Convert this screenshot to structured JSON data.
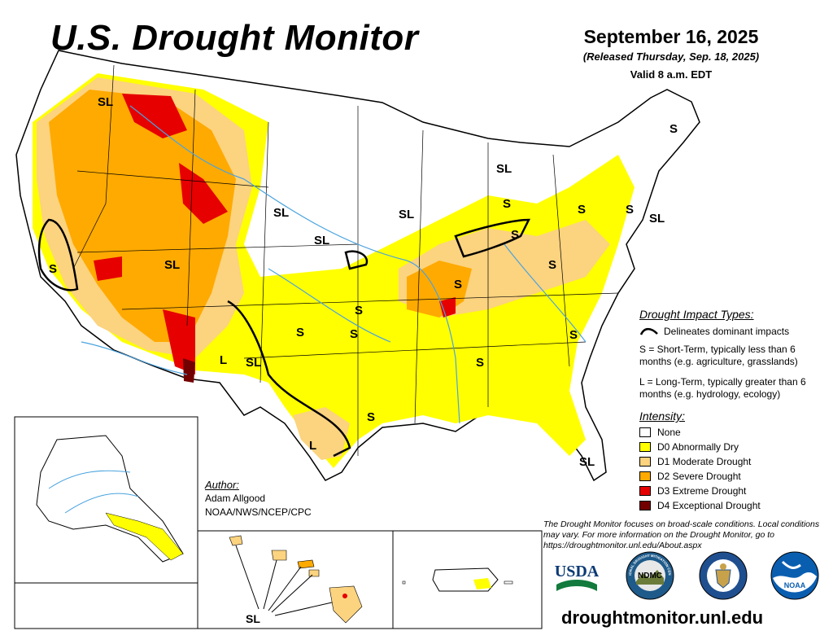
{
  "header": {
    "title": "U.S. Drought Monitor",
    "date": "September 16, 2025",
    "released": "(Released Thursday, Sep. 18, 2025)",
    "valid": "Valid 8 a.m. EDT"
  },
  "impact_types": {
    "title": "Drought Impact Types:",
    "delineates": "Delineates dominant impacts",
    "short_term": "S = Short-Term, typically less than 6 months (e.g. agriculture, grasslands)",
    "long_term": "L = Long-Term, typically greater than 6 months (e.g. hydrology, ecology)"
  },
  "intensity": {
    "title": "Intensity:",
    "levels": [
      {
        "label": "None",
        "color": "#ffffff"
      },
      {
        "label": "D0 Abnormally Dry",
        "color": "#ffff00"
      },
      {
        "label": "D1 Moderate Drought",
        "color": "#fcd37f"
      },
      {
        "label": "D2 Severe Drought",
        "color": "#ffaa00"
      },
      {
        "label": "D3 Extreme Drought",
        "color": "#e60000"
      },
      {
        "label": "D4 Exceptional Drought",
        "color": "#730000"
      }
    ]
  },
  "author": {
    "title": "Author:",
    "name": "Adam Allgood",
    "org": "NOAA/NWS/NCEP/CPC"
  },
  "disclaimer": "The Drought Monitor focuses on broad-scale conditions. Local conditions may vary. For more information on the Drought Monitor, go to https://droughtmonitor.unl.edu/About.aspx",
  "url": "droughtmonitor.unl.edu",
  "map_labels": {
    "sl": "SL",
    "s": "S",
    "l": "L"
  },
  "logos": {
    "usda": "USDA",
    "ndmc": "NDMC",
    "ndmc_ring": "NATIONAL DROUGHT MITIGATION CENTER",
    "noaa": "NOAA"
  },
  "colors": {
    "none": "#ffffff",
    "d0": "#ffff00",
    "d1": "#fcd37f",
    "d2": "#ffaa00",
    "d3": "#e60000",
    "d4": "#730000",
    "water": "#4aa3df",
    "usda_blue": "#0b3a74",
    "usda_green": "#117a3c",
    "noaa_blue": "#0a5eb0"
  }
}
